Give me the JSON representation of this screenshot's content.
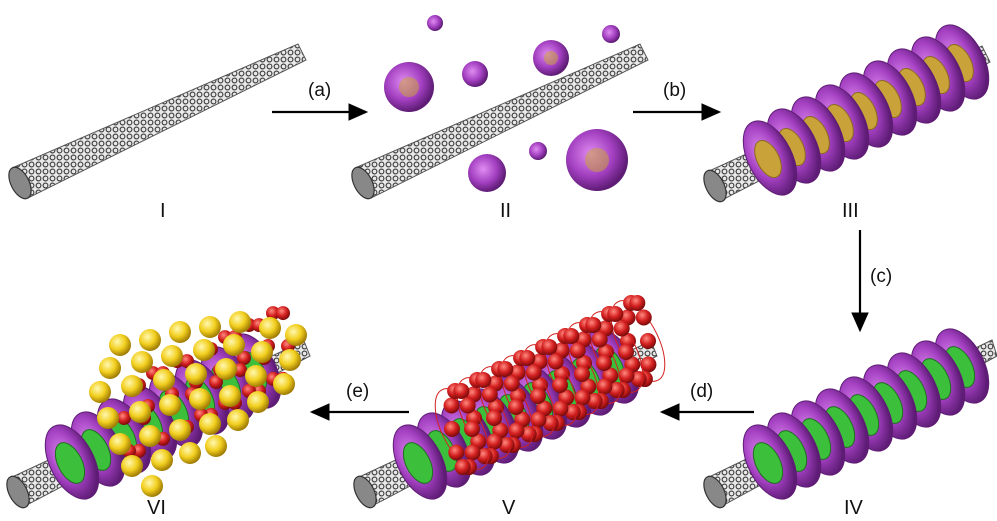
{
  "stages": [
    {
      "id": "I",
      "label": "I"
    },
    {
      "id": "II",
      "label": "II"
    },
    {
      "id": "III",
      "label": "III"
    },
    {
      "id": "IV",
      "label": "IV"
    },
    {
      "id": "V",
      "label": "V"
    },
    {
      "id": "VI",
      "label": "VI"
    }
  ],
  "steps": [
    {
      "id": "a",
      "label": "(a)"
    },
    {
      "id": "b",
      "label": "(b)"
    },
    {
      "id": "c",
      "label": "(c)"
    },
    {
      "id": "d",
      "label": "(d)"
    },
    {
      "id": "e",
      "label": "(e)"
    }
  ],
  "colors": {
    "nanotube": "#4a4a4a",
    "micelle": "#a23fc0",
    "micelle_core": "#c9a23a",
    "inner_layer": "#3cc03c",
    "red_shell": "#d42020",
    "yellow_particles": "#f2cf1e",
    "arrow": "#000000"
  }
}
